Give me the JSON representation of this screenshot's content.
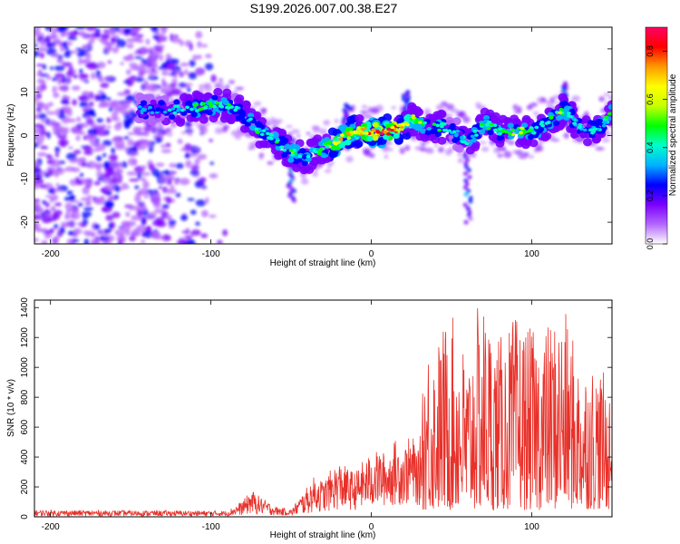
{
  "title": "S199.2026.007.00.38.E27",
  "chart_data": [
    {
      "type": "heatmap",
      "title": "S199.2026.007.00.38.E27",
      "xlabel": "Height of straight line (km)",
      "ylabel": "Frequency (Hz)",
      "xlim": [
        -210,
        150
      ],
      "ylim": [
        -25,
        25
      ],
      "xticks": [
        -200,
        -100,
        0,
        100
      ],
      "yticks": [
        -20,
        -10,
        0,
        10,
        20
      ],
      "colorbar": {
        "label": "Normalized spectral amplitude",
        "range": [
          0,
          0.9
        ],
        "ticks": [
          "0.0",
          "0.2",
          "0.4",
          "0.6",
          "0.8"
        ],
        "tick_values": [
          0,
          0.2,
          0.4,
          0.6,
          0.8
        ],
        "colors": [
          "#ffffff",
          "#b366ff",
          "#7a00ff",
          "#0000ff",
          "#00b3ff",
          "#00ffcc",
          "#00ff00",
          "#c8ff00",
          "#ffff00",
          "#ff9900",
          "#ff0000",
          "#ff0066"
        ]
      },
      "noise_region_x": [
        -210,
        -90
      ],
      "ridge": {
        "x": [
          -145,
          -130,
          -115,
          -100,
          -90,
          -80,
          -70,
          -60,
          -50,
          -40,
          -30,
          -20,
          -10,
          0,
          10,
          20,
          25,
          35,
          45,
          55,
          60,
          70,
          80,
          90,
          100,
          110,
          120,
          130,
          140,
          150
        ],
        "y": [
          6,
          6,
          6,
          7,
          7,
          5,
          1,
          -1,
          -4,
          -5,
          -3,
          -1,
          1,
          1,
          1,
          2,
          4,
          2,
          2,
          0,
          -2,
          3,
          1,
          1,
          1,
          3,
          6,
          2,
          1,
          5
        ],
        "amplitude": [
          0.35,
          0.35,
          0.45,
          0.55,
          0.5,
          0.45,
          0.5,
          0.45,
          0.55,
          0.5,
          0.5,
          0.9,
          0.7,
          0.9,
          0.95,
          0.7,
          0.6,
          0.5,
          0.5,
          0.4,
          0.45,
          0.55,
          0.55,
          0.6,
          0.5,
          0.5,
          0.55,
          0.4,
          0.45,
          0.5
        ]
      },
      "streaks": [
        {
          "x": -50,
          "y_from": -1,
          "y_to": -15
        },
        {
          "x": 60,
          "y_from": 0,
          "y_to": -20
        },
        {
          "x": 22,
          "y_from": 0,
          "y_to": 10
        },
        {
          "x": -15,
          "y_from": -3,
          "y_to": 7
        },
        {
          "x": 120,
          "y_from": 2,
          "y_to": 12
        }
      ]
    },
    {
      "type": "line",
      "xlabel": "Height of straight line (km)",
      "ylabel": "SNR (10 * v/v)",
      "xlim": [
        -210,
        150
      ],
      "ylim": [
        0,
        1450
      ],
      "xticks": [
        -200,
        -100,
        0,
        100
      ],
      "yticks": [
        0,
        200,
        400,
        600,
        800,
        1000,
        1200,
        1400
      ],
      "color": "#e8312a",
      "series": [
        {
          "name": "SNR",
          "x": [
            -210,
            -90,
            -80,
            -75,
            -70,
            -60,
            -50,
            -40,
            -35,
            -30,
            -25,
            -20,
            -15,
            -10,
            -5,
            0,
            5,
            10,
            15,
            20,
            25,
            30,
            32,
            35,
            40,
            45,
            50,
            55,
            60,
            65,
            70,
            75,
            80,
            90,
            100,
            110,
            120,
            130,
            140,
            150
          ],
          "envelope": [
            45,
            40,
            110,
            180,
            140,
            70,
            50,
            200,
            280,
            240,
            320,
            370,
            330,
            300,
            380,
            420,
            450,
            420,
            520,
            470,
            560,
            420,
            1000,
            1200,
            1150,
            1300,
            1350,
            1250,
            1050,
            1380,
            1450,
            1300,
            1200,
            1350,
            1250,
            1300,
            1400,
            1050,
            1050,
            870
          ],
          "baseline": [
            15,
            15,
            40,
            60,
            50,
            30,
            25,
            60,
            110,
            100,
            130,
            150,
            140,
            150,
            170,
            200,
            230,
            230,
            250,
            260,
            270,
            240,
            150,
            140,
            150,
            140,
            130,
            140,
            130,
            130,
            140,
            140,
            150,
            150,
            150,
            150,
            160,
            160,
            160,
            160
          ]
        }
      ]
    }
  ]
}
